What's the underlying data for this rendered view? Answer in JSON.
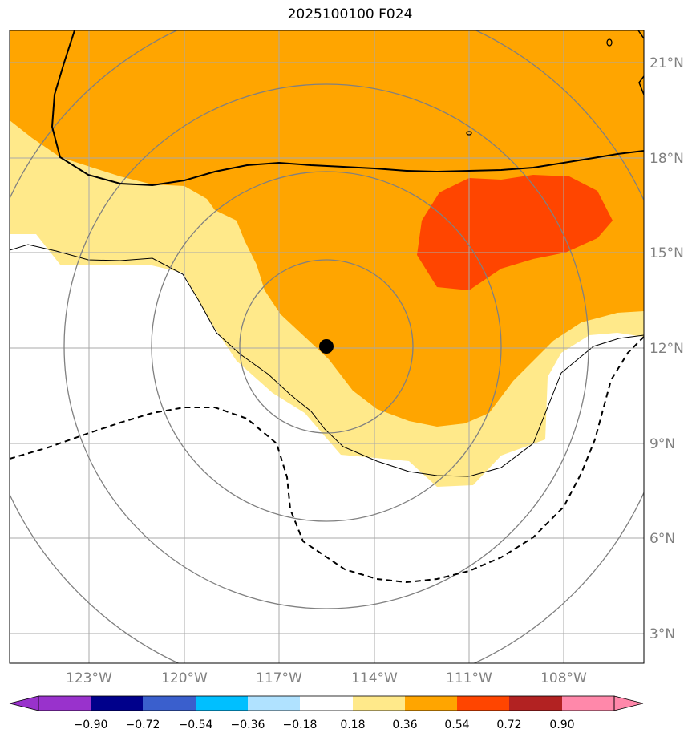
{
  "title": "2025100100 F024",
  "map": {
    "lat_labels": [
      "21°N",
      "18°N",
      "15°N",
      "12°N",
      "9°N",
      "6°N",
      "3°N"
    ],
    "lon_labels": [
      "123°W",
      "120°W",
      "117°W",
      "114°W",
      "111°W",
      "108°W"
    ],
    "storm_center": {
      "lon": -115.5,
      "lat": 12.1
    }
  },
  "colorbar": {
    "ticks": [
      "−0.90",
      "−0.72",
      "−0.54",
      "−0.36",
      "−0.18",
      "0.18",
      "0.36",
      "0.54",
      "0.72",
      "0.90"
    ],
    "colors": [
      "#9932cc",
      "#00008b",
      "#3a5fcd",
      "#00bfff",
      "#b0e2ff",
      "#ffffff",
      "#ffe98a",
      "#ffa500",
      "#ff4500",
      "#b22222",
      "#ff88aa"
    ]
  }
}
